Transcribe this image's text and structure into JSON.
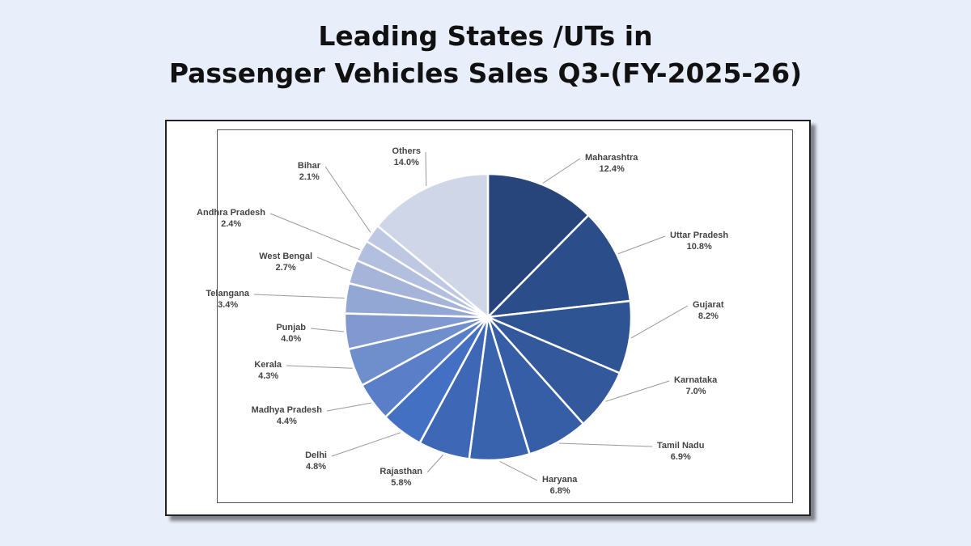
{
  "title_line1": "Leading States /UTs in",
  "title_line2": "Passenger Vehicles Sales Q3-(FY-2025-26)",
  "chart_data": {
    "type": "pie",
    "title": "Leading States /UTs in Passenger Vehicles Sales Q3-(FY-2025-26)",
    "unit": "%",
    "start_angle": "12 o'clock, clockwise",
    "categories": [
      "Maharashtra",
      "Uttar Pradesh",
      "Gujarat",
      "Karnataka",
      "Tamil Nadu",
      "Haryana",
      "Rajasthan",
      "Delhi",
      "Madhya Pradesh",
      "Kerala",
      "Punjab",
      "Telangana",
      "West Bengal",
      "Andhra Pradesh",
      "Bihar",
      "Others"
    ],
    "values": [
      12.4,
      10.8,
      8.2,
      7.0,
      6.9,
      6.8,
      5.8,
      4.8,
      4.4,
      4.3,
      4.0,
      3.4,
      2.7,
      2.4,
      2.1,
      14.0
    ],
    "labels": [
      "12.4%",
      "10.8%",
      "8.2%",
      "7.0%",
      "6.9%",
      "6.8%",
      "5.8%",
      "4.8%",
      "4.4%",
      "4.3%",
      "4.0%",
      "3.4%",
      "2.7%",
      "2.4%",
      "2.1%",
      "14.0%"
    ],
    "colors": [
      "#27457a",
      "#2b4e8a",
      "#2f5494",
      "#33599c",
      "#365ea6",
      "#3a63ae",
      "#3e68b6",
      "#4470c4",
      "#5a7fc8",
      "#6f8fcc",
      "#8199d0",
      "#93a7d5",
      "#a6b4da",
      "#b3bfdf",
      "#bec8e3",
      "#cfd6e8"
    ],
    "legend": "none (data labels with leader lines)"
  }
}
